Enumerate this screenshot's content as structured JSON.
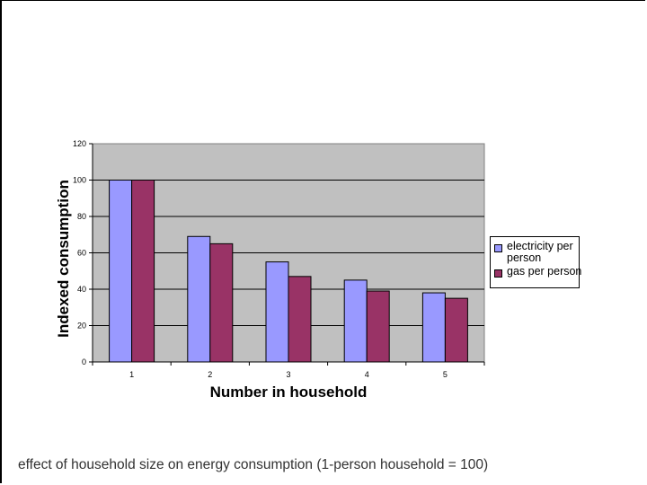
{
  "caption": "effect of household size on energy consumption (1-person household = 100)",
  "chart_data": {
    "type": "bar",
    "categories": [
      "1",
      "2",
      "3",
      "4",
      "5"
    ],
    "series": [
      {
        "name": "electricity per person",
        "values": [
          100,
          69,
          55,
          45,
          38
        ],
        "color": "#9999ff"
      },
      {
        "name": "gas per person",
        "values": [
          100,
          65,
          47,
          39,
          35
        ],
        "color": "#993366"
      }
    ],
    "xlabel": "Number in household",
    "ylabel": "Indexed consumption",
    "ylim": [
      0,
      120
    ],
    "yticks": [
      "0",
      "20",
      "40",
      "60",
      "80",
      "100",
      "120"
    ],
    "grid": true,
    "plot_background": "#c0c0c0",
    "legend_position": "right"
  }
}
